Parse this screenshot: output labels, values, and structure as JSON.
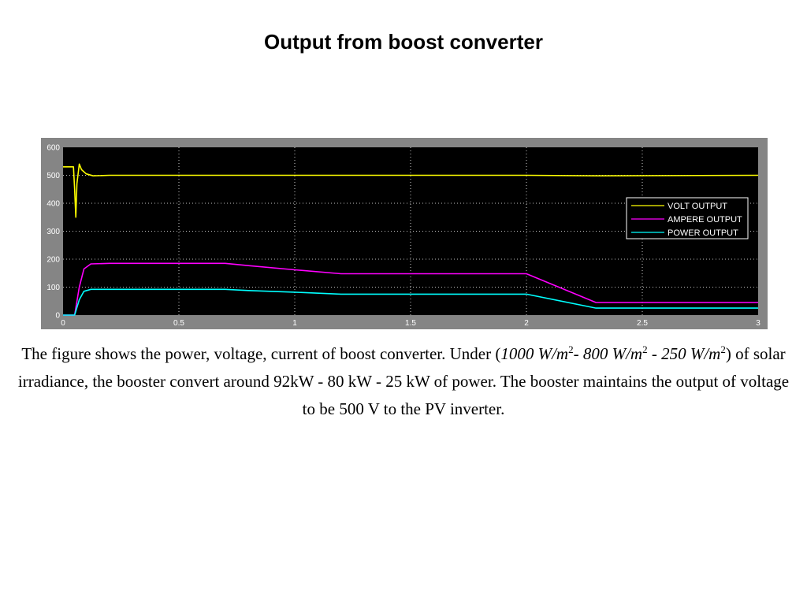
{
  "slide": {
    "title": "Output from boost converter"
  },
  "caption": {
    "part1": "The figure shows the power, voltage, current of boost converter. Under (",
    "irr1": "1000 W/m",
    "sup1": "2",
    "irr2": "- 800 W/m",
    "sup2": "2",
    "irr3": " - 250 W/m",
    "sup3": "2",
    "part2": ") of solar irradiance, the booster convert around 92kW - 80 kW - 25 kW of power. The booster maintains the output of voltage to be 500 V to the PV inverter."
  },
  "chart_data": {
    "type": "line",
    "title": "",
    "xlabel": "",
    "ylabel": "",
    "xlim": [
      0,
      3
    ],
    "ylim": [
      0,
      600
    ],
    "x_ticks": [
      "0",
      "0.5",
      "1",
      "1.5",
      "2",
      "2.5",
      "3"
    ],
    "y_ticks": [
      "0",
      "100",
      "200",
      "300",
      "400",
      "500",
      "600"
    ],
    "grid": true,
    "grid_style": "dotted",
    "background": "#000000",
    "legend_position": "right",
    "series": [
      {
        "name": "VOLT OUTPUT",
        "color": "#ffff00",
        "points": [
          [
            0,
            530
          ],
          [
            0.045,
            530
          ],
          [
            0.05,
            450
          ],
          [
            0.055,
            350
          ],
          [
            0.06,
            470
          ],
          [
            0.07,
            540
          ],
          [
            0.08,
            520
          ],
          [
            0.1,
            505
          ],
          [
            0.13,
            498
          ],
          [
            0.2,
            500
          ],
          [
            1.5,
            500
          ],
          [
            2.0,
            500
          ],
          [
            2.3,
            498
          ],
          [
            3.0,
            500
          ]
        ]
      },
      {
        "name": "AMPERE OUTPUT",
        "color": "#ff00ff",
        "points": [
          [
            0,
            0
          ],
          [
            0.05,
            0
          ],
          [
            0.07,
            100
          ],
          [
            0.09,
            165
          ],
          [
            0.12,
            183
          ],
          [
            0.2,
            185
          ],
          [
            0.7,
            185
          ],
          [
            0.8,
            177
          ],
          [
            1.0,
            162
          ],
          [
            1.2,
            148
          ],
          [
            2.0,
            148
          ],
          [
            2.3,
            45
          ],
          [
            3.0,
            45
          ]
        ]
      },
      {
        "name": "POWER OUTPUT",
        "color": "#00ffff",
        "points": [
          [
            0,
            0
          ],
          [
            0.05,
            0
          ],
          [
            0.07,
            55
          ],
          [
            0.09,
            85
          ],
          [
            0.12,
            92
          ],
          [
            0.2,
            92
          ],
          [
            0.7,
            92
          ],
          [
            0.8,
            88
          ],
          [
            1.0,
            82
          ],
          [
            1.2,
            75
          ],
          [
            2.0,
            75
          ],
          [
            2.3,
            25
          ],
          [
            3.0,
            25
          ]
        ]
      }
    ]
  }
}
